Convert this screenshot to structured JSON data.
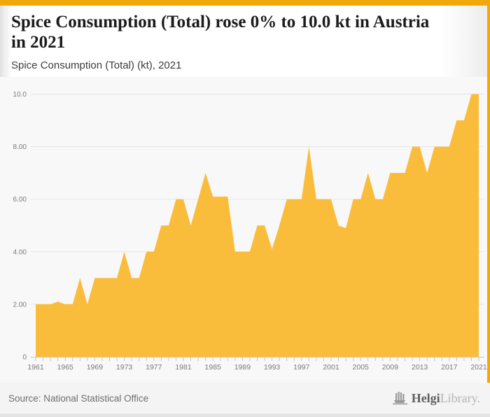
{
  "header": {
    "title": "Spice Consumption (Total) rose 0% to 10.0 kt in Austria in 2021",
    "subtitle": "Spice Consumption (Total) (kt), 2021"
  },
  "footer": {
    "source": "Source: National Statistical Office",
    "logo_part1": "Helgi",
    "logo_part2": "Library."
  },
  "colors": {
    "accent_bar": "#F2A70A",
    "area_fill": "#FABD3B",
    "plot_bg": "#F8F8F8",
    "gridline": "#E5E5E5",
    "axis_line": "#C9C9C9",
    "tick_mark": "#B9C4DA",
    "axis_text": "#7A7A7A"
  },
  "chart_data": {
    "type": "area",
    "series_name": "Spice Consumption (Total) (kt)",
    "x": [
      1961,
      1962,
      1963,
      1964,
      1965,
      1966,
      1967,
      1968,
      1969,
      1970,
      1971,
      1972,
      1973,
      1974,
      1975,
      1976,
      1977,
      1978,
      1979,
      1980,
      1981,
      1982,
      1983,
      1984,
      1985,
      1986,
      1987,
      1988,
      1989,
      1990,
      1991,
      1992,
      1993,
      1994,
      1995,
      1996,
      1997,
      1998,
      1999,
      2000,
      2001,
      2002,
      2003,
      2004,
      2005,
      2006,
      2007,
      2008,
      2009,
      2010,
      2011,
      2012,
      2013,
      2014,
      2015,
      2016,
      2017,
      2018,
      2019,
      2020,
      2021
    ],
    "values": [
      2.0,
      2.0,
      2.0,
      2.1,
      2.0,
      2.0,
      3.0,
      2.0,
      3.0,
      3.0,
      3.0,
      3.0,
      4.0,
      3.0,
      3.0,
      4.0,
      4.0,
      5.0,
      5.0,
      6.0,
      6.0,
      5.0,
      6.0,
      7.0,
      6.1,
      6.1,
      6.1,
      4.0,
      4.0,
      4.0,
      5.0,
      5.0,
      4.1,
      5.0,
      6.0,
      6.0,
      6.0,
      8.0,
      6.0,
      6.0,
      6.0,
      5.0,
      4.9,
      6.0,
      6.0,
      7.0,
      6.0,
      6.0,
      7.0,
      7.0,
      7.0,
      8.0,
      8.0,
      7.0,
      8.0,
      8.0,
      8.0,
      9.0,
      9.0,
      10.0,
      10.0
    ],
    "xlim": [
      1961,
      2021
    ],
    "ylim": [
      0,
      10.0
    ],
    "x_tick_labels": [
      "1961",
      "1965",
      "1969",
      "1973",
      "1977",
      "1981",
      "1985",
      "1989",
      "1993",
      "1997",
      "2001",
      "2005",
      "2009",
      "2013",
      "2017",
      "2021"
    ],
    "y_ticks": [
      {
        "label": "10.0",
        "value": 10
      },
      {
        "label": "8.00",
        "value": 8
      },
      {
        "label": "6.00",
        "value": 6
      },
      {
        "label": "4.00",
        "value": 4
      },
      {
        "label": "2.00",
        "value": 2
      },
      {
        "label": "0",
        "value": 0
      }
    ],
    "grid": true,
    "legend": false
  }
}
